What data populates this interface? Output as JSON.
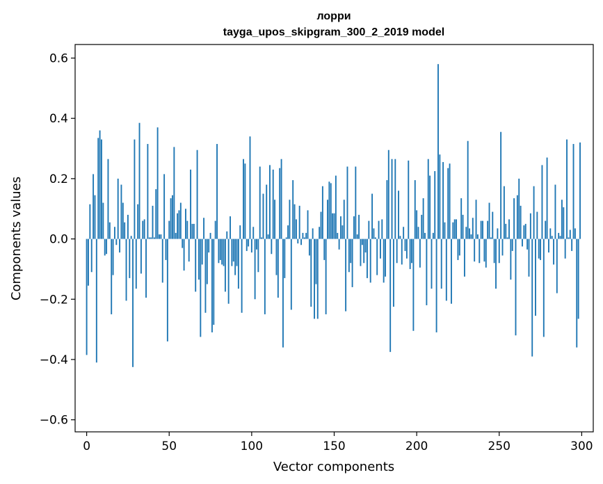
{
  "chart_data": {
    "type": "bar",
    "title": "лорри",
    "subtitle": "tayga_upos_skipgram_300_2_2019 model",
    "xlabel": "Vector components",
    "ylabel": "Components values",
    "xlim": [
      -7,
      307
    ],
    "ylim": [
      -0.64,
      0.645
    ],
    "xticks": [
      0,
      50,
      100,
      150,
      200,
      250,
      300
    ],
    "xtick_labels": [
      "0",
      "50",
      "100",
      "150",
      "200",
      "250",
      "300"
    ],
    "yticks": [
      -0.6,
      -0.4,
      -0.2,
      0.0,
      0.2,
      0.4,
      0.6
    ],
    "ytick_labels": [
      "−0.6",
      "−0.4",
      "−0.2",
      "0.0",
      "0.2",
      "0.4",
      "0.6"
    ],
    "bar_color": "#1f77b4",
    "grid": false,
    "x": "indices 0..299",
    "values": [
      -0.385,
      -0.155,
      0.115,
      -0.11,
      0.215,
      0.145,
      -0.41,
      0.335,
      0.36,
      0.33,
      0.12,
      -0.055,
      -0.05,
      0.265,
      0.055,
      -0.25,
      -0.12,
      0.04,
      -0.02,
      0.2,
      -0.045,
      0.18,
      0.12,
      0.055,
      -0.205,
      0.08,
      -0.13,
      0.01,
      -0.425,
      0.33,
      -0.165,
      0.115,
      0.385,
      -0.115,
      0.06,
      0.065,
      -0.195,
      0.315,
      0.005,
      0.005,
      0.11,
      0.005,
      0.165,
      0.37,
      0.015,
      0.015,
      -0.145,
      0.215,
      -0.07,
      -0.34,
      0.06,
      0.135,
      0.145,
      0.305,
      0.02,
      0.085,
      0.095,
      0.12,
      -0.03,
      -0.105,
      0.1,
      0.06,
      -0.075,
      0.23,
      0.05,
      0.05,
      -0.175,
      0.295,
      -0.135,
      -0.325,
      -0.085,
      0.07,
      -0.245,
      -0.15,
      -0.045,
      0.02,
      -0.31,
      -0.285,
      0.06,
      0.315,
      -0.08,
      -0.07,
      -0.085,
      -0.09,
      -0.175,
      0.025,
      -0.215,
      0.075,
      -0.09,
      -0.075,
      -0.12,
      -0.09,
      -0.165,
      0.045,
      -0.245,
      0.265,
      0.25,
      -0.04,
      -0.025,
      0.34,
      -0.045,
      0.04,
      -0.2,
      -0.035,
      -0.11,
      0.24,
      0.005,
      0.15,
      -0.25,
      0.18,
      0.015,
      0.245,
      -0.05,
      0.23,
      0.13,
      -0.12,
      -0.195,
      0.235,
      0.265,
      -0.36,
      -0.13,
      0.005,
      0.045,
      0.13,
      -0.235,
      0.195,
      0.115,
      0.065,
      -0.015,
      0.11,
      -0.02,
      0.02,
      0.005,
      0.02,
      0.095,
      -0.055,
      -0.225,
      0.035,
      -0.265,
      -0.15,
      -0.265,
      0.04,
      0.09,
      0.175,
      -0.07,
      -0.25,
      0.13,
      0.19,
      0.185,
      0.085,
      0.085,
      0.21,
      0.02,
      -0.035,
      0.075,
      0.045,
      0.13,
      -0.24,
      0.24,
      -0.11,
      -0.08,
      -0.16,
      0.075,
      0.24,
      0.015,
      0.08,
      -0.09,
      -0.02,
      -0.08,
      -0.045,
      -0.13,
      0.06,
      -0.145,
      0.15,
      0.035,
      0.005,
      -0.12,
      0.06,
      -0.065,
      0.065,
      -0.145,
      -0.125,
      0.195,
      0.295,
      -0.375,
      0.265,
      -0.225,
      0.265,
      -0.08,
      0.16,
      0.01,
      -0.085,
      0.04,
      -0.04,
      -0.065,
      0.26,
      -0.1,
      -0.08,
      -0.305,
      0.195,
      0.095,
      0.04,
      -0.095,
      0.08,
      0.135,
      0.02,
      -0.22,
      0.265,
      0.21,
      -0.165,
      0.02,
      0.225,
      -0.31,
      0.58,
      0.28,
      -0.165,
      0.255,
      0.055,
      -0.205,
      0.235,
      0.25,
      -0.215,
      0.055,
      0.065,
      0.065,
      -0.07,
      -0.055,
      0.135,
      0.08,
      -0.125,
      0.04,
      0.325,
      0.035,
      0.015,
      0.07,
      -0.075,
      0.13,
      0.015,
      -0.08,
      0.06,
      0.06,
      -0.075,
      -0.095,
      0.06,
      0.12,
      0.005,
      0.09,
      -0.08,
      -0.165,
      0.035,
      -0.08,
      0.355,
      -0.055,
      0.175,
      0.05,
      0.005,
      0.065,
      -0.135,
      -0.04,
      0.135,
      -0.32,
      0.145,
      0.2,
      0.11,
      -0.025,
      0.045,
      0.05,
      -0.035,
      -0.125,
      0.085,
      -0.39,
      0.175,
      -0.255,
      0.09,
      -0.065,
      -0.07,
      0.245,
      -0.325,
      0.06,
      0.27,
      -0.045,
      0.035,
      0.01,
      -0.085,
      0.18,
      -0.18,
      0.02,
      0.01,
      0.13,
      0.105,
      -0.065,
      0.33,
      0.005,
      0.03,
      -0.04,
      0.315,
      0.035,
      -0.36,
      -0.265,
      0.32
    ]
  }
}
